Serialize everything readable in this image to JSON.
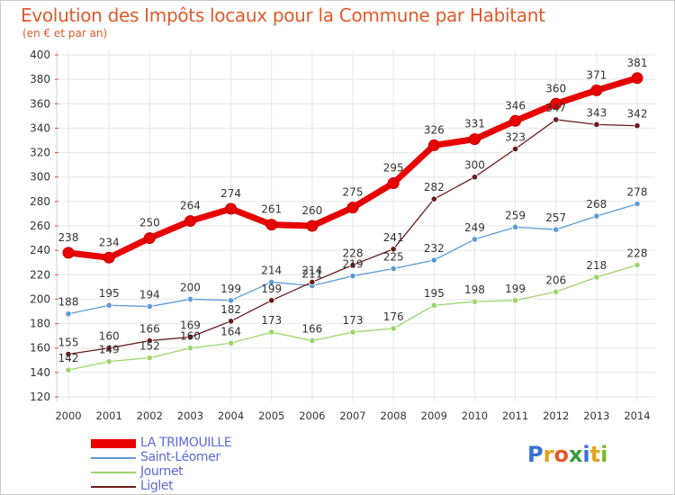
{
  "colors": {
    "title": "#e05a2a",
    "legend_text": "#5a6ad8",
    "grid": "#e6e6e6",
    "axis_text": "#333333"
  },
  "header": {
    "title": "Evolution des Impôts locaux pour la Commune par Habitant",
    "subtitle": "(en € et par an)"
  },
  "logo": {
    "text": "Proxiti",
    "letters": [
      "P",
      "r",
      "o",
      "x",
      "i",
      "t",
      "i"
    ],
    "letter_colors": [
      "#3a6fd6",
      "#e6a01a",
      "#e05a2a",
      "#3a9a3a",
      "#3a6fd6",
      "#e6a01a",
      "#7ab830"
    ]
  },
  "chart_data": {
    "type": "line",
    "title": "Evolution des Impôts locaux pour la Commune par Habitant",
    "subtitle": "(en € et par an)",
    "x": [
      "2000",
      "2001",
      "2002",
      "2003",
      "2004",
      "2005",
      "2006",
      "2007",
      "2008",
      "2009",
      "2010",
      "2011",
      "2012",
      "2013",
      "2014"
    ],
    "yticks": [
      120,
      140,
      160,
      180,
      200,
      220,
      240,
      260,
      280,
      300,
      320,
      340,
      360,
      380,
      400
    ],
    "ylim": [
      120,
      400
    ],
    "grid": true,
    "legend_position": "bottom-left",
    "series": [
      {
        "name": "LA TRIMOUILLE",
        "color": "#e80000",
        "values": [
          238,
          234,
          250,
          264,
          274,
          261,
          260,
          275,
          295,
          326,
          331,
          346,
          360,
          371,
          381
        ]
      },
      {
        "name": "Saint-Léomer",
        "color": "#5a9ad6",
        "values": [
          188,
          195,
          194,
          200,
          199,
          214,
          211,
          219,
          225,
          232,
          249,
          259,
          257,
          268,
          278
        ]
      },
      {
        "name": "Journet",
        "color": "#9ad66a",
        "values": [
          142,
          149,
          152,
          160,
          164,
          173,
          166,
          173,
          176,
          195,
          198,
          199,
          206,
          218,
          228
        ]
      },
      {
        "name": "Liglet",
        "color": "#6a1a1a",
        "values": [
          155,
          160,
          166,
          169,
          182,
          199,
          214,
          228,
          241,
          282,
          300,
          323,
          347,
          343,
          342
        ]
      }
    ],
    "data_labels": [
      [
        "238",
        "234",
        "250",
        "264",
        "274",
        "261",
        "260",
        "275",
        "295",
        "326",
        "331",
        "346",
        "360",
        "371",
        "381"
      ],
      [
        "188",
        "195",
        "194",
        "200",
        "199",
        "214",
        "211",
        "219",
        "225",
        "232",
        "249",
        "259",
        "257",
        "268",
        "278"
      ],
      [
        "142",
        "149",
        "152",
        "160",
        "164",
        "173",
        "166",
        "173",
        "176",
        "195",
        "198",
        "199",
        "206",
        "218",
        "228"
      ],
      [
        "155",
        "160",
        "166",
        "169",
        "182",
        "199",
        "214",
        "228",
        "241",
        "282",
        "300",
        "323",
        "347",
        "343",
        "342"
      ]
    ]
  }
}
